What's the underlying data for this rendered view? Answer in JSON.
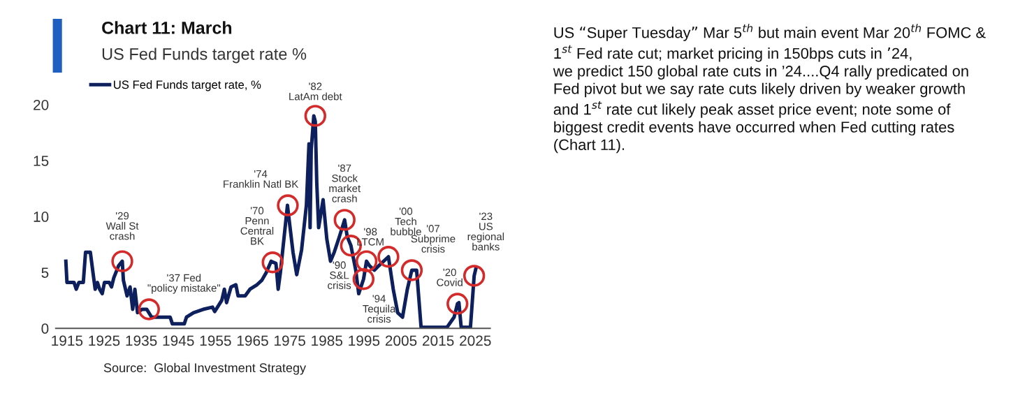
{
  "chart_data": [
    {
      "type": "line",
      "title": "Chart 11: March",
      "subtitle": "US Fed Funds target rate %",
      "x": [
        1914.7,
        1915,
        1916.9,
        1917.5,
        1918.2,
        1919.4,
        1920,
        1921.3,
        1922,
        1922.6,
        1923.2,
        1923.8,
        1924.5,
        1925.1,
        1926.4,
        1927,
        1927.6,
        1928.9,
        1929.9,
        1930.2,
        1931.2,
        1932,
        1932.7,
        1933.3,
        1934,
        1935.2,
        1936.5,
        1937.8,
        1942.8,
        1943.4,
        1946.6,
        1947.2,
        1949.1,
        1951.7,
        1954.2,
        1954.8,
        1956.7,
        1957.4,
        1958,
        1959.2,
        1960.5,
        1961.1,
        1963,
        1964.3,
        1966.2,
        1967.5,
        1968.7,
        1970,
        1971.3,
        1971.9,
        1972.5,
        1974.4,
        1975,
        1975.9,
        1976.9,
        1978.2,
        1979.5,
        1980.2,
        1980.5,
        1980.8,
        1981.5,
        1981.9,
        1982.3,
        1982.8,
        1984,
        1985,
        1986,
        1987,
        1988.3,
        1989.8,
        1990.5,
        1991.5,
        1992.8,
        1993.6,
        1994.9,
        1995.7,
        1996.5,
        1997.8,
        1999,
        2001.6,
        2002.9,
        2004.1,
        2005.4,
        2006.7,
        2007.9,
        2009.2,
        2010.4,
        2017.4,
        2019.3,
        2020.2,
        2020.6,
        2021.2,
        2023.7,
        2024.7,
        2025.2
      ],
      "series": [
        {
          "name": "US Fed Funds target rate, %",
          "color": "#0d1f5c",
          "values": [
            6.0,
            4.1,
            4.1,
            3.5,
            4.1,
            4.1,
            6.8,
            6.8,
            5.0,
            3.5,
            4.1,
            3.5,
            3.1,
            4.1,
            4.1,
            3.7,
            4.5,
            5.6,
            6.0,
            4.3,
            2.9,
            3.7,
            1.7,
            3.5,
            1.4,
            1.7,
            1.7,
            1.0,
            1.0,
            0.4,
            0.4,
            1.0,
            1.4,
            1.7,
            1.9,
            1.5,
            2.5,
            3.5,
            2.3,
            3.7,
            3.9,
            2.9,
            2.9,
            3.5,
            3.9,
            4.3,
            5.0,
            6.0,
            5.8,
            3.5,
            5.0,
            11.0,
            9.3,
            6.8,
            4.8,
            7.0,
            11.0,
            16.5,
            9.0,
            16.0,
            19.0,
            18.5,
            13.0,
            9.0,
            11.5,
            8.0,
            6.0,
            6.8,
            8.1,
            9.7,
            8.2,
            7.4,
            5.2,
            3.1,
            4.4,
            6.0,
            5.6,
            5.2,
            5.6,
            6.4,
            3.5,
            1.4,
            1.0,
            3.5,
            5.2,
            5.2,
            0.1,
            0.1,
            1.0,
            2.2,
            2.3,
            0.1,
            0.1,
            4.7,
            5.4
          ]
        }
      ],
      "xlim": [
        1912,
        2029
      ],
      "xticks": [
        1915,
        1925,
        1935,
        1945,
        1955,
        1965,
        1975,
        1985,
        1995,
        2005,
        2015,
        2025
      ],
      "ylim": [
        0,
        20
      ],
      "yticks": [
        0,
        5,
        10,
        15,
        20
      ],
      "grid": false,
      "legend": "top left",
      "marker": "none",
      "line_style": "solid",
      "annotations": [
        {
          "text": "'29\nWall St\ncrash",
          "x": 1929.9,
          "y": 6.0
        },
        {
          "text": "'37 Fed\n\"policy mistake\"",
          "x": 1937.1,
          "y": 1.7
        },
        {
          "text": "'70\nPenn\nCentral\nBK",
          "x": 1970.4,
          "y": 5.9
        },
        {
          "text": "'74\nFranklin Natl BK",
          "x": 1974.5,
          "y": 11.0
        },
        {
          "text": "'82\nLatAm debt",
          "x": 1981.9,
          "y": 19.0
        },
        {
          "text": "'87\nStock\nmarket\ncrash",
          "x": 1989.8,
          "y": 9.7
        },
        {
          "text": "'90\nS&L\ncrisis",
          "x": 1991.5,
          "y": 7.4
        },
        {
          "text": "'94\nTequila\ncrisis",
          "x": 1994.9,
          "y": 4.4
        },
        {
          "text": "'98\nLTCM",
          "x": 1995.7,
          "y": 6.0
        },
        {
          "text": "'00\nTech\nbubble",
          "x": 2001.6,
          "y": 6.4
        },
        {
          "text": "'07\nSubprime\ncrisis",
          "x": 2007.9,
          "y": 5.2
        },
        {
          "text": "'20\nCovid",
          "x": 2020.2,
          "y": 2.2
        },
        {
          "text": "'23\nUS\nregional\nbanks",
          "x": 2024.7,
          "y": 4.7
        },
        "Source:  Global Investment Strategy"
      ]
    },
    {
      "type": "other",
      "annotations": [
        "US “Super Tuesday” Mar 5$^{th}$ but main event Mar 20$^{th}$ FOMC &\n1$^{st}$ Fed rate cut; market pricing in 150bps cuts in ’24,\nwe predict 150 global rate cuts in ’24....Q4 rally predicated on\nFed pivot but we say rate cuts likely driven by weaker growth\nand 1$^{st}$ rate cut likely peak asset price event; note some of\nbiggest credit events have occurred when Fed cutting rates\n(Chart 11)."
      ]
    }
  ]
}
